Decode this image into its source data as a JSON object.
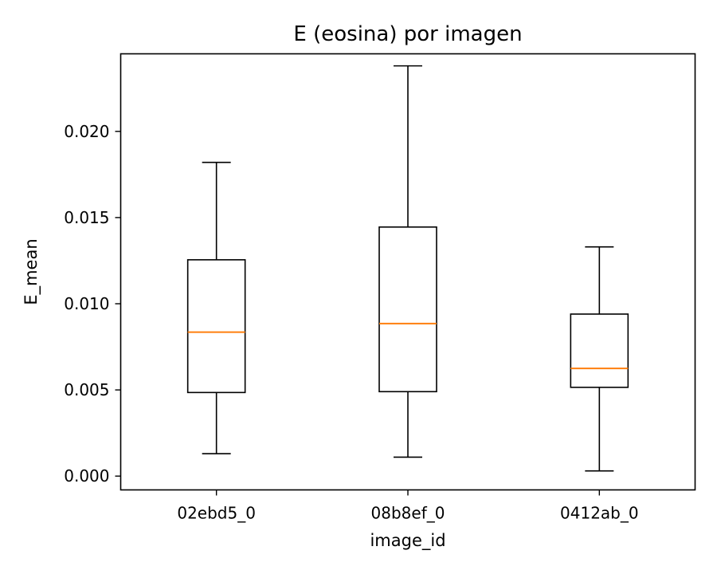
{
  "chart_data": {
    "type": "box",
    "title": "E (eosina) por imagen",
    "xlabel": "image_id",
    "ylabel": "E_mean",
    "ylim": [
      -0.0008,
      0.0245
    ],
    "yticks": [
      "0.000",
      "0.005",
      "0.010",
      "0.015",
      "0.020"
    ],
    "ytick_values": [
      0.0,
      0.005,
      0.01,
      0.015,
      0.02
    ],
    "categories": [
      "02ebd5_0",
      "08b8ef_0",
      "0412ab_0"
    ],
    "boxes": [
      {
        "category": "02ebd5_0",
        "whisker_low": 0.0013,
        "q1": 0.00485,
        "median": 0.00835,
        "q3": 0.01255,
        "whisker_high": 0.0182
      },
      {
        "category": "08b8ef_0",
        "whisker_low": 0.0011,
        "q1": 0.0049,
        "median": 0.00885,
        "q3": 0.01445,
        "whisker_high": 0.0238
      },
      {
        "category": "0412ab_0",
        "whisker_low": 0.0003,
        "q1": 0.00515,
        "median": 0.00625,
        "q3": 0.0094,
        "whisker_high": 0.0133
      }
    ],
    "colors": {
      "box": "#000000",
      "median": "#ff7f0e"
    },
    "grid": false,
    "legend": "none"
  }
}
